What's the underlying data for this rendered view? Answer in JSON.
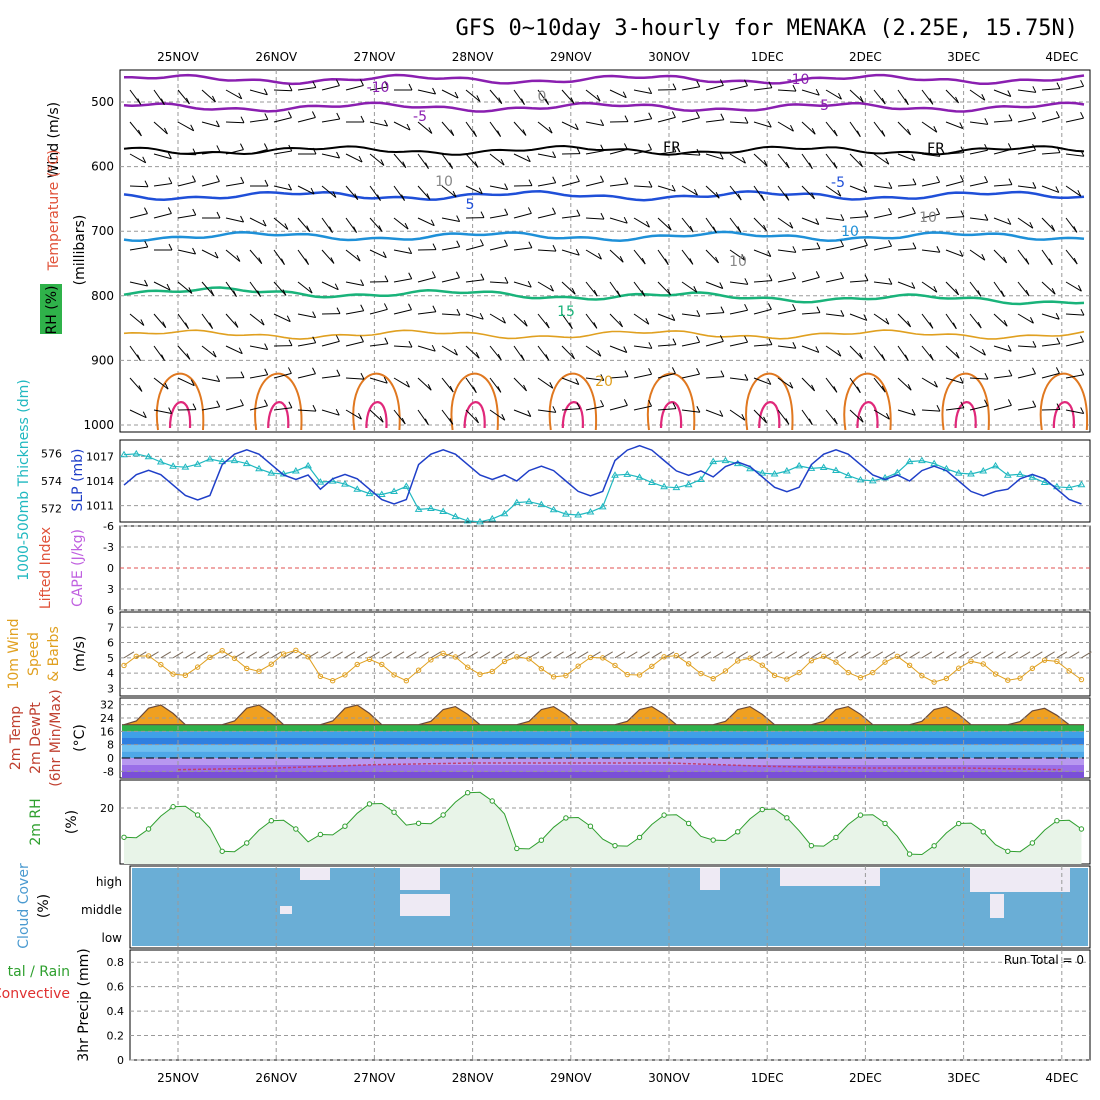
{
  "title": "GFS 0~10day 3-hourly for MENAKA (2.25E, 15.75N)",
  "dates": [
    "25NOV",
    "26NOV",
    "27NOV",
    "28NOV",
    "29NOV",
    "30NOV",
    "1DEC",
    "2DEC",
    "3DEC",
    "4DEC"
  ],
  "colors": {
    "wind_label": "#000000",
    "temperature_label": "#e0533a",
    "rh_box": "#2fb24a",
    "iso_neg10": "#8a1fb0",
    "iso_neg5": "#8a1fb0",
    "iso_fr": "#000000",
    "iso_5": "#1f4fd8",
    "iso_10": "#1e90d8",
    "iso_15": "#19b37a",
    "iso_20": "#e0a020",
    "iso_25": "#e07820",
    "iso_30": "#e0287a",
    "slp": "#1f3fc8",
    "thickness": "#20b8c0",
    "lifted_index_label": "#e0533a",
    "cape_label": "#c060e0",
    "wind10_label": "#e0a020",
    "wind10_line": "#e0a020",
    "temp_label": "#c04030",
    "rh2m_label": "#2fa02f",
    "rh2m_fill": "#e8f4e8",
    "cloud": "#6aaed6",
    "cloud_label": "#4a9ad0",
    "precip_total_label": "#2fa02f",
    "precip_conv_label": "#e03030"
  },
  "upper": {
    "ylabel_wind": "Wind (m/s)",
    "ylabel_temp": "Temperature (°C)",
    "ylabel_units": "(millibars)",
    "rh_label": "RH (%)",
    "ticks": [
      "500",
      "600",
      "700",
      "800",
      "900",
      "1000"
    ],
    "contour_labels": [
      "-10",
      "-10",
      "-5",
      "-5",
      "FR",
      "FR",
      "-5",
      "5",
      "10",
      "15",
      "20",
      "0",
      "10",
      "10",
      "10"
    ]
  },
  "slp_panel": {
    "ylabel_left": "1000-500mb Thickness (dm)",
    "ylabel_right": "SLP (mb)",
    "left_ticks": [
      "576",
      "574",
      "572"
    ],
    "right_ticks": [
      "1017",
      "1014",
      "1011"
    ]
  },
  "li_panel": {
    "ylabel_left": "Lifted Index",
    "ylabel_right": "CAPE (J/kg)",
    "ticks": [
      "-6",
      "-3",
      "0",
      "3",
      "6"
    ]
  },
  "wind10_panel": {
    "ylabel_1": "10m Wind",
    "ylabel_2": "Speed",
    "ylabel_3": "& Barbs",
    "ylabel_units": "(m/s)",
    "ticks": [
      "7",
      "6",
      "5",
      "4",
      "3"
    ]
  },
  "temp_panel": {
    "ylabel_1": "2m Temp",
    "ylabel_2": "2m DewPt",
    "ylabel_3": "(6hr Min/Max)",
    "ylabel_units": "(°C)",
    "ticks": [
      "32",
      "24",
      "16",
      "8",
      "0",
      "-8"
    ]
  },
  "rh_panel": {
    "ylabel": "2m RH",
    "ylabel_units": "(%)",
    "ticks": [
      "20"
    ]
  },
  "cloud_panel": {
    "ylabel": "Cloud Cover",
    "ylabel_units": "(%)",
    "levels": [
      "high",
      "middle",
      "low"
    ]
  },
  "precip_panel": {
    "ylabel_1": "tal / Rain",
    "ylabel_2": "Convective",
    "ylabel_3": "3hr Precip (mm)",
    "ticks": [
      "0.8",
      "0.6",
      "0.4",
      "0.2",
      "0"
    ],
    "run_total": "Run Total = 0"
  },
  "chart_data": [
    {
      "type": "line",
      "title": "SLP (mb)",
      "x": [
        "25NOV",
        "26NOV",
        "27NOV",
        "28NOV",
        "29NOV",
        "30NOV",
        "1DEC",
        "2DEC",
        "3DEC",
        "4DEC"
      ],
      "series": [
        {
          "name": "SLP (mb)",
          "values": [
            1013.5,
            1016,
            1013,
            1016,
            1014,
            1016.5,
            1014.5,
            1016,
            1014,
            1013
          ]
        },
        {
          "name": "1000-500mb Thickness (dm)",
          "values": [
            575.5,
            575,
            573.5,
            571.5,
            572,
            574,
            575,
            574.5,
            575,
            574
          ]
        }
      ],
      "ylim_left": [
        571,
        577
      ],
      "ylim_right": [
        1009,
        1019
      ]
    },
    {
      "type": "line",
      "title": "10m Wind Speed",
      "x": [
        "25NOV",
        "26NOV",
        "27NOV",
        "28NOV",
        "29NOV",
        "30NOV",
        "1DEC",
        "2DEC",
        "3DEC",
        "4DEC"
      ],
      "series": [
        {
          "name": "10m Wind Speed",
          "values": [
            4.5,
            4.8,
            4.2,
            4.6,
            4.4,
            4.5,
            4.3,
            4.4,
            4.1,
            4.2
          ]
        }
      ],
      "ylim": [
        2.5,
        8
      ]
    },
    {
      "type": "area",
      "title": "2m RH",
      "x": [
        "25NOV",
        "26NOV",
        "27NOV",
        "28NOV",
        "29NOV",
        "30NOV",
        "1DEC",
        "2DEC",
        "3DEC",
        "4DEC"
      ],
      "series": [
        {
          "name": "2m RH",
          "values": [
            15,
            10,
            16,
            20,
            11,
            12,
            14,
            12,
            9,
            10
          ]
        }
      ],
      "ylim": [
        0,
        30
      ]
    },
    {
      "type": "area",
      "title": "2m Temp",
      "x": [
        "25NOV",
        "26NOV",
        "27NOV",
        "28NOV",
        "29NOV",
        "30NOV",
        "1DEC",
        "2DEC",
        "3DEC",
        "4DEC"
      ],
      "series": [
        {
          "name": "2m Temp",
          "values": [
            32,
            32,
            32,
            31,
            31,
            31,
            31,
            31,
            31,
            30
          ]
        },
        {
          "name": "2m DewPt",
          "values": [
            -7,
            -6,
            -4,
            -3,
            -3,
            -3,
            -5,
            -6,
            -6,
            -7
          ]
        }
      ],
      "ylim": [
        -12,
        36
      ]
    }
  ]
}
